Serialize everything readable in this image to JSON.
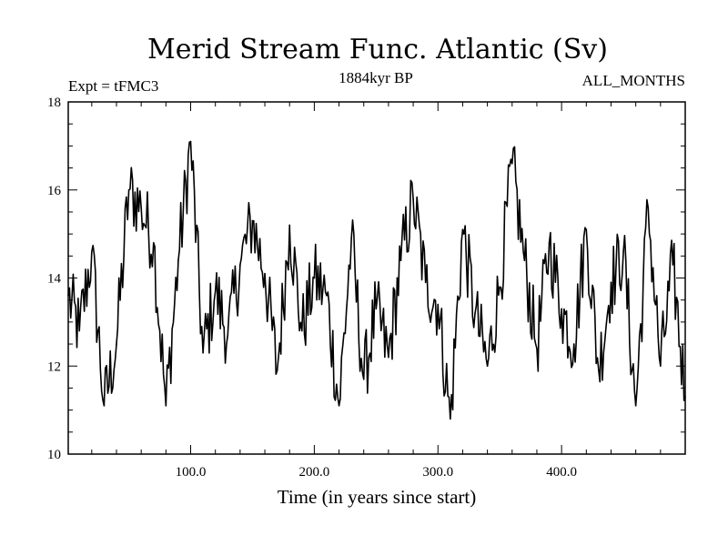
{
  "chart_data": {
    "type": "line",
    "title": "Merid Stream Func. Atlantic (Sv)",
    "subtitle_left": "Expt = tFMC3",
    "subtitle_center": "1884kyr BP",
    "subtitle_right": "ALL_MONTHS",
    "xlabel": "Time (in years since start)",
    "ylabel": "",
    "xlim": [
      1,
      500
    ],
    "ylim": [
      10,
      18
    ],
    "xticks": [
      100,
      200,
      300,
      400
    ],
    "xtick_labels": [
      "100.0",
      "200.0",
      "300.0",
      "400.0"
    ],
    "yticks": [
      10,
      12,
      14,
      16,
      18
    ],
    "ytick_labels": [
      "10",
      "12",
      "14",
      "16",
      "18"
    ],
    "grid": false,
    "series": [
      {
        "name": "Merid Stream Func. Atlantic",
        "x": [
          1,
          10,
          20,
          30,
          40,
          50,
          60,
          70,
          80,
          90,
          100,
          110,
          120,
          130,
          140,
          150,
          160,
          170,
          180,
          190,
          200,
          210,
          220,
          230,
          240,
          250,
          260,
          270,
          280,
          290,
          300,
          310,
          320,
          330,
          340,
          350,
          360,
          370,
          380,
          390,
          400,
          410,
          420,
          430,
          440,
          450,
          460,
          470,
          480,
          490,
          500
        ],
        "values": [
          13.6,
          12.8,
          14.6,
          11.1,
          12.5,
          16.0,
          15.6,
          14.8,
          11.1,
          14.4,
          17.1,
          12.3,
          13.7,
          12.7,
          14.3,
          15.3,
          14.1,
          11.9,
          15.2,
          12.8,
          14.0,
          13.6,
          11.1,
          14.9,
          11.7,
          13.3,
          12.2,
          14.4,
          15.8,
          13.9,
          13.4,
          10.8,
          15.1,
          13.2,
          12.0,
          13.8,
          16.6,
          14.4,
          12.4,
          14.8,
          13.3,
          12.5,
          15.1,
          11.9,
          13.9,
          14.6,
          11.1,
          15.6,
          12.0,
          14.3,
          11.3
        ]
      }
    ]
  }
}
